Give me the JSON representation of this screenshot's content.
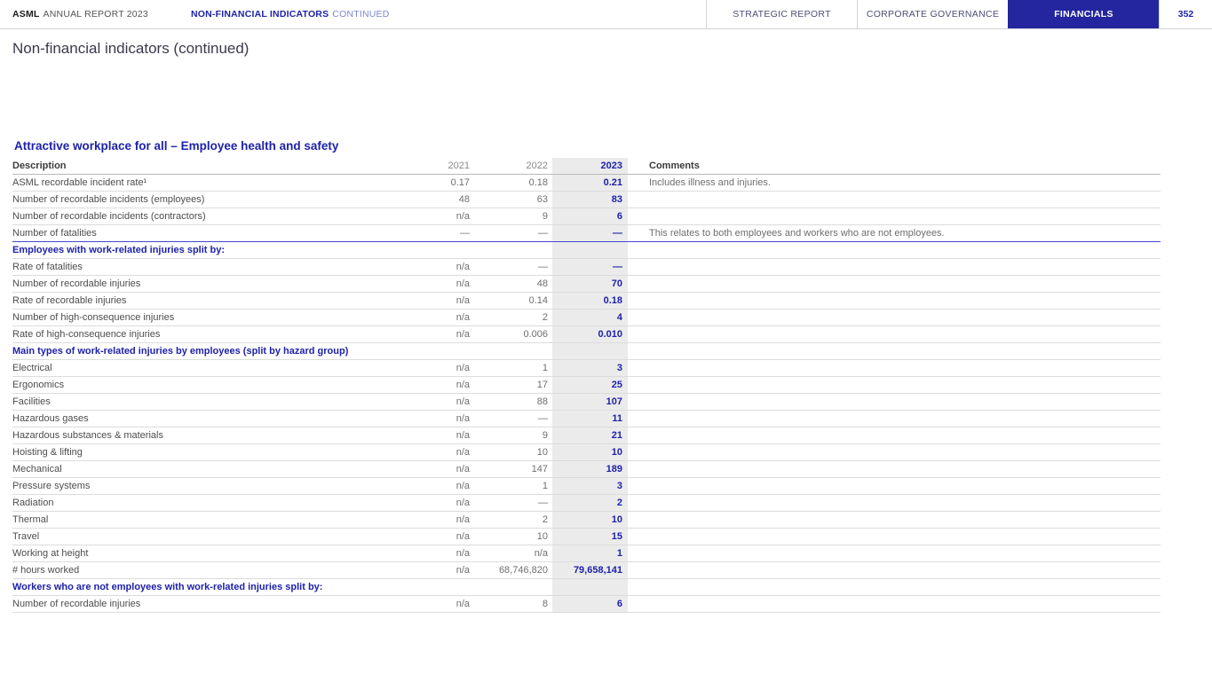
{
  "topbar": {
    "brand": "ASML",
    "report": "ANNUAL REPORT 2023",
    "section": "NON-FINANCIAL INDICATORS",
    "section_suffix": "CONTINUED",
    "tabs": [
      {
        "label": "STRATEGIC REPORT",
        "active": false
      },
      {
        "label": "CORPORATE GOVERNANCE",
        "active": false
      },
      {
        "label": "FINANCIALS",
        "active": true
      }
    ],
    "page_number": "352"
  },
  "page": {
    "title": "Non-financial indicators (continued)"
  },
  "table": {
    "section_title": "Attractive workplace for all – Employee health and safety",
    "columns": [
      "Description",
      "2021",
      "2022",
      "2023",
      "Comments"
    ],
    "rows": [
      {
        "type": "data",
        "label": "ASML recordable incident rate¹",
        "y2021": "0.17",
        "y2022": "0.18",
        "y2023": "0.21",
        "comment": "Includes illness and injuries."
      },
      {
        "type": "data",
        "label": "Number of recordable incidents (employees)",
        "y2021": "48",
        "y2022": "63",
        "y2023": "83",
        "comment": ""
      },
      {
        "type": "data",
        "label": "Number of recordable incidents (contractors)",
        "y2021": "n/a",
        "y2022": "9",
        "y2023": "6",
        "comment": ""
      },
      {
        "type": "data",
        "divider": true,
        "label": "Number of fatalities",
        "y2021": "—",
        "y2022": "—",
        "y2023": "—",
        "comment": "This relates to both employees and workers who are not employees."
      },
      {
        "type": "section",
        "label": "Employees with work-related injuries split by:",
        "y2021": "",
        "y2022": "",
        "y2023": "",
        "comment": ""
      },
      {
        "type": "data",
        "label": "Rate of fatalities",
        "y2021": "n/a",
        "y2022": "—",
        "y2023": "—",
        "comment": ""
      },
      {
        "type": "data",
        "label": "Number of recordable injuries",
        "y2021": "n/a",
        "y2022": "48",
        "y2023": "70",
        "comment": ""
      },
      {
        "type": "data",
        "label": "Rate of recordable injuries",
        "y2021": "n/a",
        "y2022": "0.14",
        "y2023": "0.18",
        "comment": ""
      },
      {
        "type": "data",
        "label": "Number of high-consequence injuries",
        "y2021": "n/a",
        "y2022": "2",
        "y2023": "4",
        "comment": ""
      },
      {
        "type": "data",
        "label": "Rate of high-consequence injuries",
        "y2021": "n/a",
        "y2022": "0.006",
        "y2023": "0.010",
        "comment": ""
      },
      {
        "type": "section",
        "label": "Main types of work-related injuries by employees (split by hazard group)",
        "y2021": "",
        "y2022": "",
        "y2023": "",
        "comment": ""
      },
      {
        "type": "data",
        "label": "Electrical",
        "y2021": "n/a",
        "y2022": "1",
        "y2023": "3",
        "comment": ""
      },
      {
        "type": "data",
        "label": "Ergonomics",
        "y2021": "n/a",
        "y2022": "17",
        "y2023": "25",
        "comment": ""
      },
      {
        "type": "data",
        "label": "Facilities",
        "y2021": "n/a",
        "y2022": "88",
        "y2023": "107",
        "comment": ""
      },
      {
        "type": "data",
        "label": "Hazardous gases",
        "y2021": "n/a",
        "y2022": "—",
        "y2023": "11",
        "comment": ""
      },
      {
        "type": "data",
        "label": "Hazardous substances & materials",
        "y2021": "n/a",
        "y2022": "9",
        "y2023": "21",
        "comment": ""
      },
      {
        "type": "data",
        "label": "Hoisting & lifting",
        "y2021": "n/a",
        "y2022": "10",
        "y2023": "10",
        "comment": ""
      },
      {
        "type": "data",
        "label": "Mechanical",
        "y2021": "n/a",
        "y2022": "147",
        "y2023": "189",
        "comment": ""
      },
      {
        "type": "data",
        "label": "Pressure systems",
        "y2021": "n/a",
        "y2022": "1",
        "y2023": "3",
        "comment": ""
      },
      {
        "type": "data",
        "label": "Radiation",
        "y2021": "n/a",
        "y2022": "—",
        "y2023": "2",
        "comment": ""
      },
      {
        "type": "data",
        "label": "Thermal",
        "y2021": "n/a",
        "y2022": "2",
        "y2023": "10",
        "comment": ""
      },
      {
        "type": "data",
        "label": "Travel",
        "y2021": "n/a",
        "y2022": "10",
        "y2023": "15",
        "comment": ""
      },
      {
        "type": "data",
        "label": "Working at height",
        "y2021": "n/a",
        "y2022": "n/a",
        "y2023": "1",
        "comment": ""
      },
      {
        "type": "data",
        "label": "# hours worked",
        "y2021": "n/a",
        "y2022": "68,746,820",
        "y2023": "79,658,141",
        "comment": ""
      },
      {
        "type": "section",
        "label": "Workers who are not employees with work-related injuries split by:",
        "y2021": "",
        "y2022": "",
        "y2023": "",
        "comment": ""
      },
      {
        "type": "data",
        "label": "Number of recordable injuries",
        "y2021": "n/a",
        "y2022": "8",
        "y2023": "6",
        "comment": ""
      }
    ]
  },
  "colors": {
    "accent_blue": "#1e22aa",
    "suffix_blue": "#7d87cf",
    "highlight_column": "#ebebeb"
  }
}
